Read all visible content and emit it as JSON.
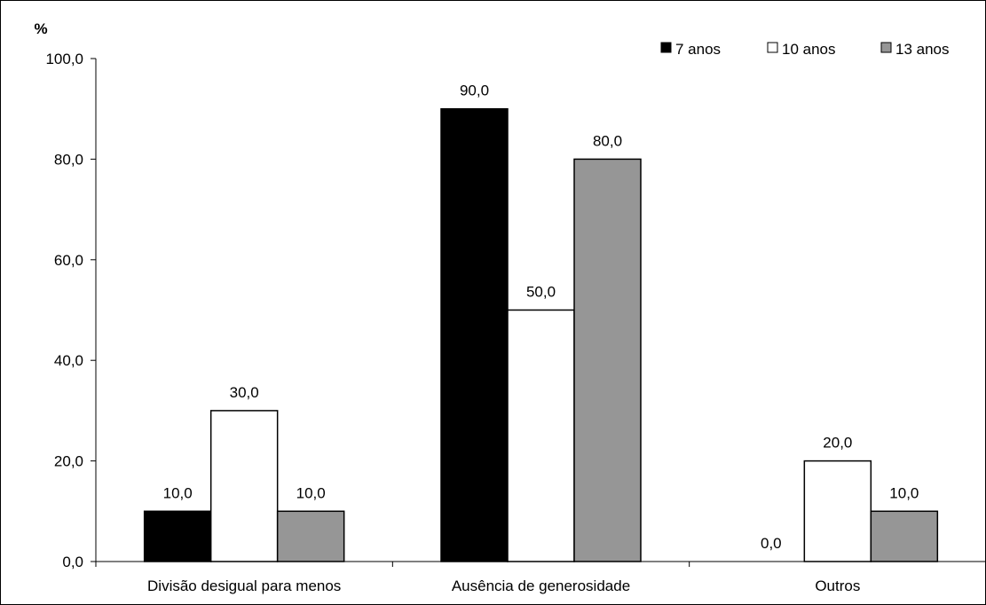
{
  "chart_data": {
    "type": "bar",
    "title": "",
    "xlabel": "",
    "ylabel": "%",
    "ylim": [
      0,
      100
    ],
    "yticks": [
      "0,0",
      "20,0",
      "40,0",
      "60,0",
      "80,0",
      "100,0"
    ],
    "ytick_values": [
      0,
      20,
      40,
      60,
      80,
      100
    ],
    "categories": [
      "Divisão desigual para menos",
      "Ausência de generosidade",
      "Outros"
    ],
    "series": [
      {
        "name": "7 anos",
        "values": [
          10.0,
          90.0,
          0.0
        ],
        "labels": [
          "10,0",
          "90,0",
          "0,0"
        ],
        "color": "#000000"
      },
      {
        "name": "10 anos",
        "values": [
          30.0,
          50.0,
          20.0
        ],
        "labels": [
          "30,0",
          "50,0",
          "20,0"
        ],
        "color": "#ffffff"
      },
      {
        "name": "13 anos",
        "values": [
          10.0,
          80.0,
          10.0
        ],
        "labels": [
          "10,0",
          "80,0",
          "10,0"
        ],
        "color": "#969696"
      }
    ],
    "grid": false,
    "legend_position": "top-right"
  }
}
